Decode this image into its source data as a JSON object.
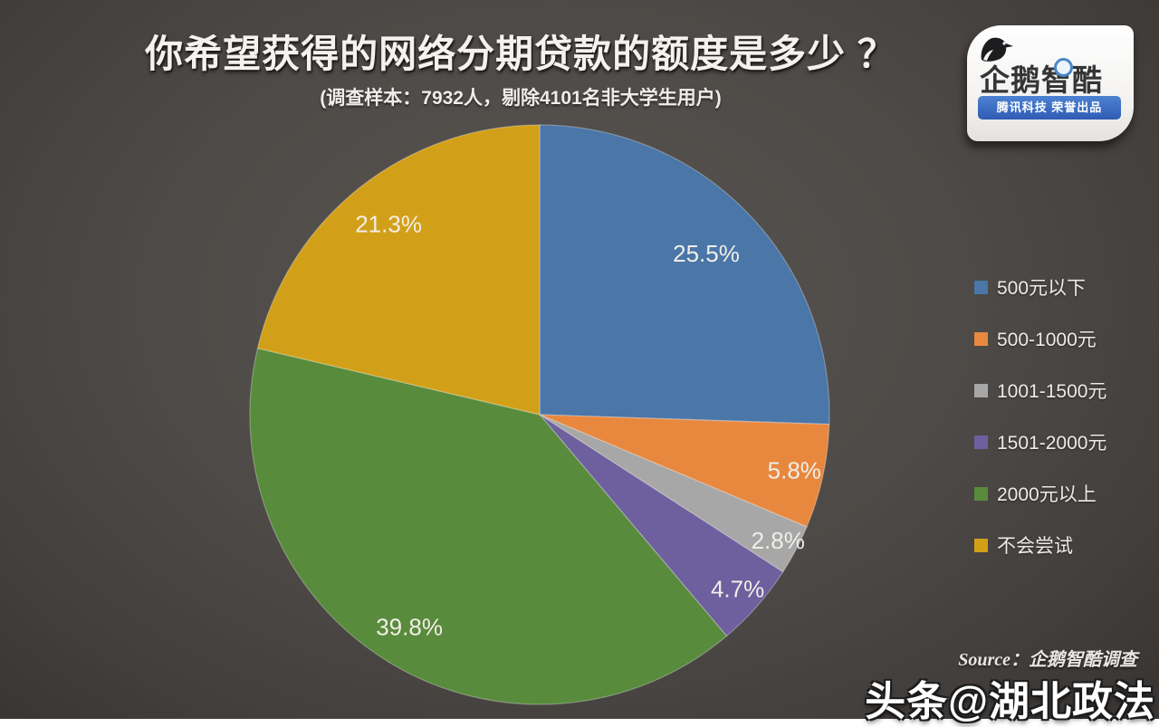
{
  "page": {
    "title": "你希望获得的网络分期贷款的额度是多少 ？",
    "subtitle": "(调查样本：7932人，剔除4101名非大学生用户)",
    "source": "Source：企鹅智酷调查",
    "watermark": "头条@湖北政法"
  },
  "logo": {
    "brand": "企鹅智酷",
    "tagline": "腾讯科技 荣誉出品",
    "banner_color": "#3a6cc2",
    "penguin_icon": "penguin-icon"
  },
  "colors": {
    "background": "#4b4845",
    "label_text": "#f1eee8"
  },
  "chart_data": {
    "type": "pie",
    "title": "你希望获得的网络分期贷款的额度是多少？",
    "categories": [
      "500元以下",
      "500-1000元",
      "1001-1500元",
      "1501-2000元",
      "2000元以上",
      "不会尝试"
    ],
    "values": [
      25.5,
      5.8,
      2.8,
      4.7,
      39.8,
      21.3
    ],
    "value_labels": [
      "25.5%",
      "5.8%",
      "2.8%",
      "4.7%",
      "39.8%",
      "21.3%"
    ],
    "colors": [
      "#4a76a8",
      "#e8883f",
      "#a7a7a7",
      "#6e5f9e",
      "#588b3c",
      "#d2a018"
    ],
    "start_angle_deg": 0,
    "direction": "clockwise",
    "legend_position": "right",
    "slice_border": "rgba(255,255,255,0.3)"
  }
}
